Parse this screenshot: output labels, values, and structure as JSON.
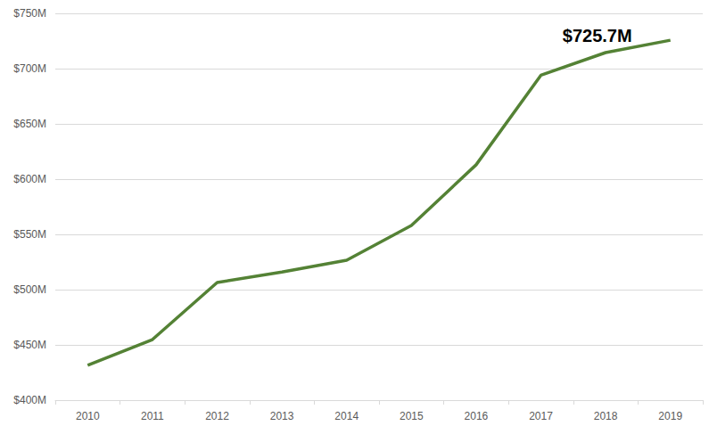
{
  "chart_data": {
    "type": "line",
    "categories": [
      "2010",
      "2011",
      "2012",
      "2013",
      "2014",
      "2015",
      "2016",
      "2017",
      "2018",
      "2019"
    ],
    "values": [
      431.5,
      454.8,
      506.5,
      516,
      526.6,
      558,
      613,
      694,
      714.5,
      725.7
    ],
    "color": "#548235",
    "ylim": [
      400,
      750
    ],
    "yticks": [
      {
        "value": 400,
        "label": "$400M"
      },
      {
        "value": 450,
        "label": "$450M"
      },
      {
        "value": 500,
        "label": "$500M"
      },
      {
        "value": 550,
        "label": "$550M"
      },
      {
        "value": 600,
        "label": "$600M"
      },
      {
        "value": 650,
        "label": "$650M"
      },
      {
        "value": 700,
        "label": "$700M"
      },
      {
        "value": 750,
        "label": "$750M"
      }
    ],
    "grid": true,
    "annotations": [
      {
        "text": "$725.7M",
        "category": "2019",
        "value": 725.7
      }
    ]
  }
}
